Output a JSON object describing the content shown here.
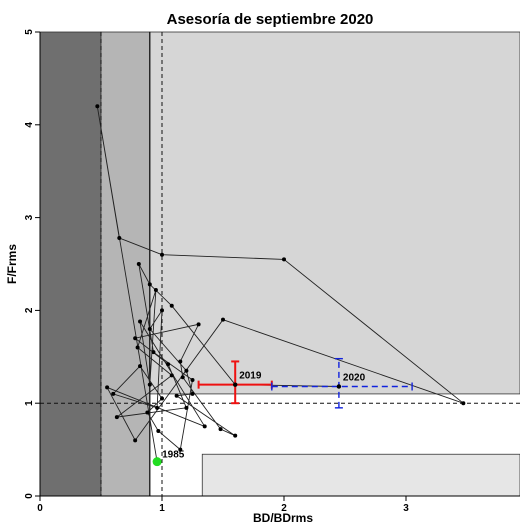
{
  "chart_data": {
    "type": "scatter",
    "title": "Asesoría de septiembre 2020",
    "xlabel": "BD/BDrms",
    "ylabel": "F/Frms",
    "xlim": [
      0,
      4
    ],
    "ylim": [
      0,
      5
    ],
    "x_ticks": [
      "0",
      "1",
      "2",
      "3"
    ],
    "y_ticks": [
      "0",
      "1",
      "2",
      "3",
      "4",
      "5"
    ],
    "zones": [
      {
        "x": [
          0,
          0.5
        ],
        "y": [
          0,
          5
        ],
        "color": "#6f6f6f"
      },
      {
        "x": [
          0.5,
          0.9
        ],
        "y": [
          0,
          5
        ],
        "color": "#b5b5b5"
      },
      {
        "x": [
          0.9,
          4
        ],
        "y": [
          1.1,
          5
        ],
        "color": "#d6d6d6"
      },
      {
        "x": [
          1.33,
          4
        ],
        "y": [
          0,
          0.45
        ],
        "color": "#e6e6e6"
      }
    ],
    "reference_lines": {
      "vertical_dashed": [
        0.5,
        1.0
      ],
      "vertical_solid": [
        0.9
      ],
      "horizontal_dashed": [
        1.0
      ]
    },
    "trajectory": [
      [
        0.47,
        4.2
      ],
      [
        0.65,
        2.78
      ],
      [
        1.0,
        2.6
      ],
      [
        2.0,
        2.55
      ],
      [
        3.47,
        1.0
      ],
      [
        1.5,
        1.9
      ],
      [
        0.78,
        0.6
      ],
      [
        0.55,
        1.17
      ],
      [
        1.35,
        0.75
      ],
      [
        0.82,
        1.88
      ],
      [
        0.9,
        1.2
      ],
      [
        0.95,
        2.22
      ],
      [
        0.8,
        1.6
      ],
      [
        1.08,
        1.3
      ],
      [
        0.63,
        0.85
      ],
      [
        1.2,
        0.95
      ],
      [
        1.05,
        1.42
      ],
      [
        0.78,
        1.7
      ],
      [
        1.3,
        1.85
      ],
      [
        1.15,
        1.45
      ],
      [
        1.17,
        1.28
      ],
      [
        1.48,
        0.72
      ],
      [
        1.6,
        0.65
      ],
      [
        1.12,
        1.08
      ],
      [
        1.25,
        1.1
      ],
      [
        1.2,
        1.35
      ],
      [
        0.9,
        1.8
      ],
      [
        1.0,
        2.0
      ],
      [
        0.96,
        0.95
      ],
      [
        0.6,
        1.1
      ],
      [
        0.82,
        1.4
      ],
      [
        1.0,
        1.05
      ],
      [
        0.88,
        0.9
      ],
      [
        0.97,
        0.7
      ],
      [
        1.15,
        0.5
      ],
      [
        1.25,
        1.25
      ],
      [
        0.93,
        1.55
      ],
      [
        0.81,
        2.5
      ],
      [
        0.9,
        2.28
      ],
      [
        1.08,
        2.05
      ],
      [
        1.6,
        1.2
      ],
      [
        2.45,
        1.18
      ]
    ],
    "first_point": {
      "label": "1985",
      "x": 0.96,
      "y": 0.37,
      "color": "#22dd22"
    },
    "highlights": [
      {
        "label": "2019",
        "x": 1.6,
        "y": 1.2,
        "x_range": [
          1.3,
          1.9
        ],
        "y_range": [
          1.0,
          1.45
        ],
        "color": "#ee1111",
        "style": "solid"
      },
      {
        "label": "2020",
        "x": 2.45,
        "y": 1.18,
        "x_range": [
          1.9,
          3.05
        ],
        "y_range": [
          0.95,
          1.48
        ],
        "color": "#1122dd",
        "style": "dashed"
      }
    ]
  }
}
